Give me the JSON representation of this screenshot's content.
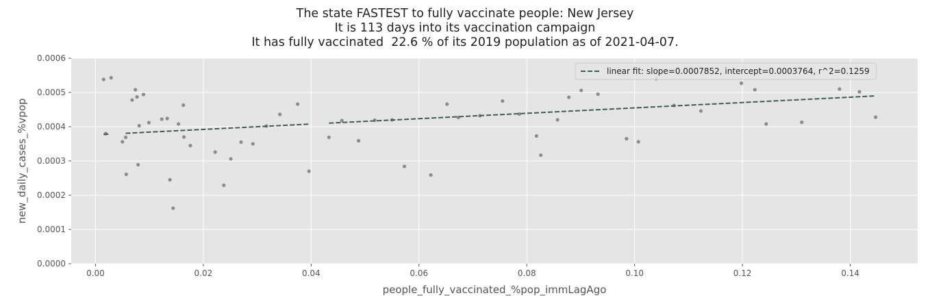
{
  "title": {
    "line1": "The state FASTEST to fully vaccinate people: New Jersey",
    "line2": "It is 113 days into its vaccination campaign",
    "line3": "It has fully vaccinated  22.6 % of its 2019 population as of 2021-04-07."
  },
  "chart_data": {
    "type": "scatter",
    "title": "The state FASTEST to fully vaccinate people: New Jersey\nIt is 113 days into its vaccination campaign\nIt has fully vaccinated  22.6 % of its 2019 population as of 2021-04-07.",
    "xlabel": "people_fully_vaccinated_%pop_immLagAgo",
    "ylabel": "new_daily_cases_%vpop",
    "xlim": [
      -0.0045,
      0.1525
    ],
    "ylim": [
      0,
      0.0006
    ],
    "x_ticks": [
      "0.00",
      "0.02",
      "0.04",
      "0.06",
      "0.08",
      "0.10",
      "0.12",
      "0.14"
    ],
    "x_tick_values": [
      0,
      0.02,
      0.04,
      0.06,
      0.08,
      0.1,
      0.12,
      0.14
    ],
    "y_ticks": [
      "0.0000",
      "0.0001",
      "0.0002",
      "0.0003",
      "0.0004",
      "0.0005",
      "0.0006"
    ],
    "y_tick_values": [
      0,
      0.0001,
      0.0002,
      0.0003,
      0.0004,
      0.0005,
      0.0006
    ],
    "grid": true,
    "legend_position": "top-right",
    "series": [
      {
        "points": [
          [
            0.0015,
            0.000538
          ],
          [
            0.0029,
            0.000543
          ],
          [
            0.0019,
            0.00038
          ],
          [
            0.005,
            0.000356
          ],
          [
            0.0056,
            0.000369
          ],
          [
            0.0057,
            0.000261
          ],
          [
            0.0068,
            0.000478
          ],
          [
            0.0074,
            0.000508
          ],
          [
            0.0077,
            0.000487
          ],
          [
            0.0079,
            0.000289
          ],
          [
            0.0081,
            0.000403
          ],
          [
            0.0089,
            0.000494
          ],
          [
            0.0099,
            0.000412
          ],
          [
            0.0123,
            0.000422
          ],
          [
            0.0133,
            0.000424
          ],
          [
            0.0138,
            0.000245
          ],
          [
            0.0144,
            0.000162
          ],
          [
            0.0154,
            0.000408
          ],
          [
            0.0163,
            0.000463
          ],
          [
            0.0164,
            0.00037
          ],
          [
            0.0176,
            0.000345
          ],
          [
            0.0222,
            0.000326
          ],
          [
            0.0238,
            0.000229
          ],
          [
            0.0251,
            0.000306
          ],
          [
            0.027,
            0.000355
          ],
          [
            0.0292,
            0.00035
          ],
          [
            0.0317,
            0.000402
          ],
          [
            0.0342,
            0.000436
          ],
          [
            0.0375,
            0.000466
          ],
          [
            0.0396,
            0.00027
          ],
          [
            0.0433,
            0.000369
          ],
          [
            0.0457,
            0.000418
          ],
          [
            0.0488,
            0.000359
          ],
          [
            0.0518,
            0.000419
          ],
          [
            0.055,
            0.00042
          ],
          [
            0.0573,
            0.000284
          ],
          [
            0.0622,
            0.000259
          ],
          [
            0.0652,
            0.000466
          ],
          [
            0.0673,
            0.000427
          ],
          [
            0.0713,
            0.000432
          ],
          [
            0.0755,
            0.000475
          ],
          [
            0.0786,
            0.000437
          ],
          [
            0.0818,
            0.000373
          ],
          [
            0.0826,
            0.000317
          ],
          [
            0.0857,
            0.00042
          ],
          [
            0.0878,
            0.000486
          ],
          [
            0.0901,
            0.000506
          ],
          [
            0.0932,
            0.000495
          ],
          [
            0.0985,
            0.000365
          ],
          [
            0.1007,
            0.000356
          ],
          [
            0.104,
            0.00054
          ],
          [
            0.1073,
            0.000462
          ],
          [
            0.1123,
            0.000446
          ],
          [
            0.1198,
            0.000527
          ],
          [
            0.1223,
            0.000508
          ],
          [
            0.1244,
            0.000408
          ],
          [
            0.131,
            0.000413
          ],
          [
            0.138,
            0.00051
          ],
          [
            0.1417,
            0.000502
          ],
          [
            0.1447,
            0.000428
          ]
        ]
      },
      {
        "name": "linear fit: slope=0.0007852, intercept=0.0003764, r^2=0.1259",
        "type": "line",
        "style": "dashed",
        "segments": [
          [
            [
              0.0015,
              0.0003776
            ],
            [
              0.0024,
              0.0003783
            ]
          ],
          [
            [
              0.0056,
              0.0003808
            ],
            [
              0.0396,
              0.0004075
            ]
          ],
          [
            [
              0.0433,
              0.0004104
            ],
            [
              0.1447,
              0.00049
            ]
          ]
        ]
      }
    ]
  },
  "colors": {
    "plot_bg": "#e5e5e5",
    "grid": "#ffffff",
    "points": "#8c8c8c",
    "fit_line": "#3f5a52"
  }
}
